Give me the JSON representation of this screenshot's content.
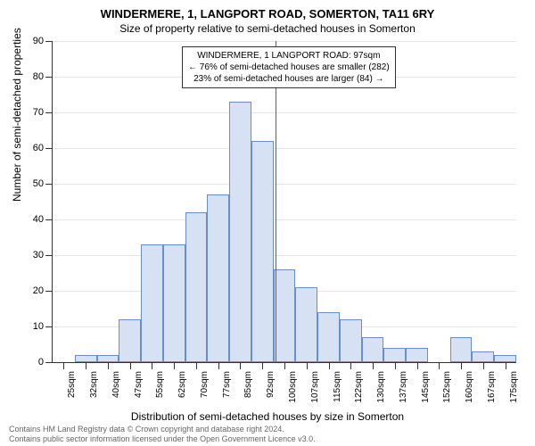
{
  "title_main": "WINDERMERE, 1, LANGPORT ROAD, SOMERTON, TA11 6RY",
  "title_sub": "Size of property relative to semi-detached houses in Somerton",
  "y_axis_title": "Number of semi-detached properties",
  "x_axis_title": "Distribution of semi-detached houses by size in Somerton",
  "annotation": {
    "line1": "WINDERMERE, 1 LANGPORT ROAD: 97sqm",
    "line2": "← 76% of semi-detached houses are smaller (282)",
    "line3": "23% of semi-detached houses are larger (84) →"
  },
  "footer_line1": "Contains HM Land Registry data © Crown copyright and database right 2024.",
  "footer_line2": "Contains public sector information licensed under the Open Government Licence v3.0.",
  "chart": {
    "type": "histogram",
    "background_color": "#ffffff",
    "grid_color": "#e6e6e6",
    "axis_color": "#333333",
    "bar_fill": "#d6e2f3",
    "bar_border": "#6a8fc7",
    "reference_line_color": "#cc3333",
    "reference_x_value": 97,
    "ylim": [
      0,
      90
    ],
    "ytick_step": 10,
    "x_categories": [
      "25sqm",
      "32sqm",
      "40sqm",
      "47sqm",
      "55sqm",
      "62sqm",
      "70sqm",
      "77sqm",
      "85sqm",
      "92sqm",
      "100sqm",
      "107sqm",
      "115sqm",
      "122sqm",
      "130sqm",
      "137sqm",
      "145sqm",
      "152sqm",
      "160sqm",
      "167sqm",
      "175sqm"
    ],
    "x_numeric": [
      25,
      32,
      40,
      47,
      55,
      62,
      70,
      77,
      85,
      92,
      100,
      107,
      115,
      122,
      130,
      137,
      145,
      152,
      160,
      167,
      175
    ],
    "values": [
      0,
      2,
      2,
      12,
      33,
      33,
      42,
      47,
      73,
      62,
      26,
      21,
      14,
      12,
      7,
      4,
      4,
      0,
      7,
      3,
      2
    ],
    "title_fontsize": 13,
    "subtitle_fontsize": 12,
    "axis_label_fontsize": 12,
    "tick_fontsize": 11,
    "annotation_fontsize": 10
  }
}
